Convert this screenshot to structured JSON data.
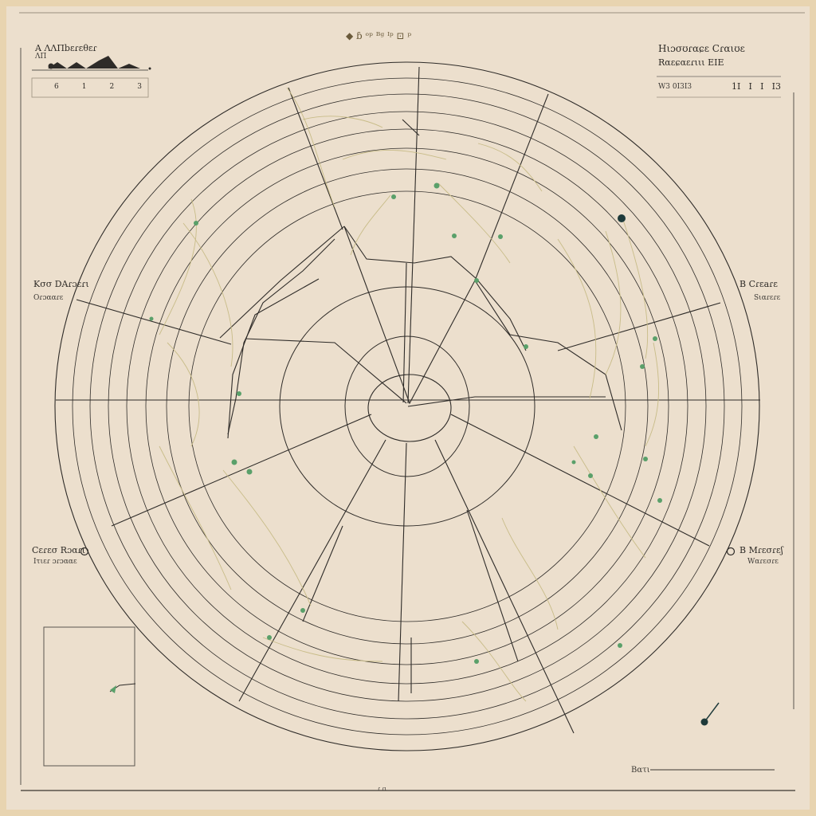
{
  "header": {
    "center_text": "◆ ɓ ᵒᵖ ᴮᵍ ᴵᵖ ⊡ ᵖ",
    "left_title": "A ΛΛΠbεɾεθεɾ",
    "left_sub": "ΛΠ",
    "left_ticks": [
      "6",
      "1",
      "2",
      "3"
    ],
    "right_title": "Hιɔσʊɾαɕε Cɾαιʊɛ",
    "right_sub": "Rαεɕαεɾιιι ΕΙΕ",
    "right_row_label": "W3 0Ι3Ι3",
    "right_row_values": [
      "1Ι",
      "Ι",
      "Ι",
      "Ι3"
    ]
  },
  "labels": {
    "mid_left_title": "Kσσ DΑɾɔɛɾι",
    "mid_left_sub": "Oɾɔααɾε",
    "mid_right_title": "Β Cɾɛaɾɛ",
    "mid_right_sub": "Sιαɾɛɾε",
    "low_left_title": "Cεɾɛσ Rɔαɾι",
    "low_left_sub": "Ιτιεɾ ɔɾɔααε",
    "low_right_title": "Β Mɾɛσɾɛʃ",
    "low_right_sub": "Wαɾεσɾε",
    "bottom_right": "Βατι",
    "bottom_center": "ɾ ɾι"
  },
  "colors": {
    "line": "#2e2b28",
    "faint": "#c8bc88",
    "green": "#5aa06a",
    "ink": "#1e3a3a"
  }
}
